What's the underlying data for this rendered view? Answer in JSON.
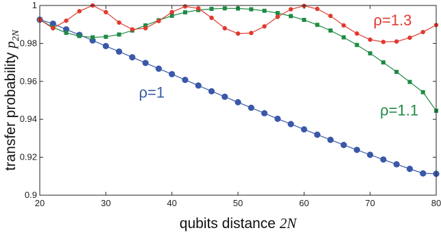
{
  "chart_data": {
    "type": "line",
    "title": "",
    "xlabel": "qubits distance",
    "xlabel_math": "2N",
    "ylabel": "transfer probability",
    "ylabel_math": "p",
    "ylabel_math_sub": "2N",
    "xlim": [
      20,
      80
    ],
    "ylim": [
      0.9,
      1.0
    ],
    "xticks": [
      20,
      30,
      40,
      50,
      60,
      70,
      80
    ],
    "xtick_labels": [
      "20",
      "30",
      "40",
      "50",
      "60",
      "70",
      "80"
    ],
    "yticks": [
      0.9,
      0.92,
      0.94,
      0.96,
      0.98,
      1.0
    ],
    "ytick_labels": [
      "0.9",
      "0.92",
      "0.94",
      "0.96",
      "0.98",
      "1"
    ],
    "grid": false,
    "legend": "inline labels",
    "x": [
      20,
      22,
      24,
      26,
      28,
      30,
      32,
      34,
      36,
      38,
      40,
      42,
      44,
      46,
      48,
      50,
      52,
      54,
      56,
      58,
      60,
      62,
      64,
      66,
      68,
      70,
      72,
      74,
      76,
      78,
      80
    ],
    "series": [
      {
        "name": "ρ=1",
        "color": "#3a58a8",
        "marker": "circle",
        "label_pos": [
          35,
          0.9515
        ],
        "values": [
          0.9925,
          0.9904,
          0.9874,
          0.9845,
          0.9816,
          0.9786,
          0.9757,
          0.9727,
          0.9697,
          0.9667,
          0.9638,
          0.9608,
          0.9578,
          0.9548,
          0.9519,
          0.949,
          0.9461,
          0.9432,
          0.9403,
          0.9375,
          0.9347,
          0.9319,
          0.9292,
          0.9265,
          0.9239,
          0.9213,
          0.9188,
          0.9163,
          0.9139,
          0.9115,
          0.9113
        ]
      },
      {
        "name": "ρ=1.1",
        "color": "#1f8a44",
        "marker": "square",
        "label_pos": [
          71.5,
          0.942
        ],
        "values": [
          0.9925,
          0.9885,
          0.9856,
          0.9839,
          0.9832,
          0.9835,
          0.9847,
          0.9868,
          0.9895,
          0.9922,
          0.9946,
          0.9964,
          0.9976,
          0.9982,
          0.9985,
          0.9984,
          0.998,
          0.9972,
          0.996,
          0.9944,
          0.9924,
          0.9898,
          0.9868,
          0.9832,
          0.9792,
          0.9748,
          0.97,
          0.965,
          0.9597,
          0.9543,
          0.9445
        ]
      },
      {
        "name": "ρ=1.3",
        "color": "#e03a2f",
        "marker": "circle-small",
        "label_pos": [
          70.5,
          0.9895
        ],
        "values": [
          0.9925,
          0.988,
          0.992,
          0.997,
          1.0,
          0.9965,
          0.991,
          0.9874,
          0.988,
          0.9918,
          0.9965,
          0.9995,
          0.9985,
          0.9935,
          0.988,
          0.9852,
          0.9855,
          0.989,
          0.994,
          0.998,
          0.9998,
          0.9982,
          0.9945,
          0.9895,
          0.9852,
          0.982,
          0.9808,
          0.981,
          0.983,
          0.986,
          0.9897
        ]
      }
    ]
  }
}
